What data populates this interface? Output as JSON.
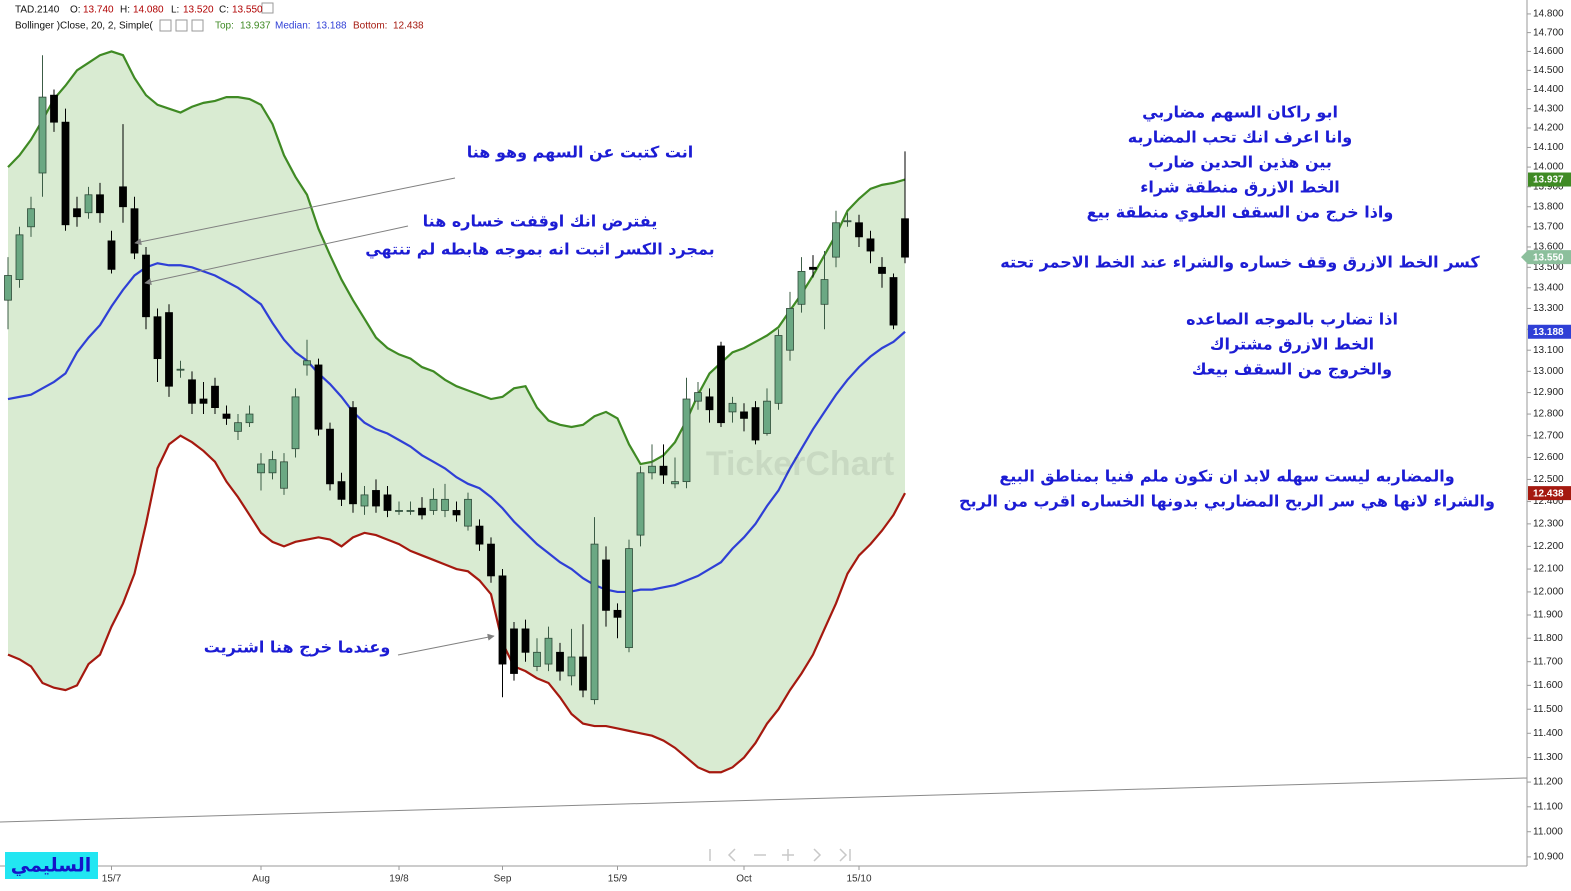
{
  "chart_data": {
    "type": "candlestick",
    "symbol": "TAD.2140",
    "ohlc_header": [
      {
        "name": "O:",
        "value": 13.74,
        "label": "13.740"
      },
      {
        "name": "H:",
        "value": 14.08,
        "label": "14.080"
      },
      {
        "name": "L:",
        "value": 13.52,
        "label": "13.520"
      },
      {
        "name": "C:",
        "value": 13.55,
        "label": "13.550"
      }
    ],
    "indicator": "Bollinger )Close, 20, 2, Simple(",
    "categories": [
      null,
      null,
      null,
      null,
      null,
      null,
      null,
      null,
      null,
      "15/7",
      null,
      null,
      null,
      null,
      null,
      null,
      null,
      null,
      null,
      null,
      null,
      null,
      "Aug",
      null,
      null,
      null,
      null,
      null,
      null,
      null,
      null,
      null,
      null,
      null,
      "19/8",
      null,
      null,
      null,
      null,
      null,
      null,
      null,
      null,
      "Sep",
      null,
      null,
      null,
      null,
      null,
      null,
      null,
      null,
      null,
      "15/9",
      null,
      null,
      null,
      null,
      null,
      null,
      null,
      null,
      null,
      null,
      "Oct",
      null,
      null,
      null,
      null,
      null,
      null,
      null,
      null,
      null,
      "15/10",
      null,
      null,
      null,
      null
    ],
    "open": [
      13.34,
      13.44,
      13.7,
      13.97,
      14.37,
      14.23,
      13.79,
      13.77,
      13.86,
      13.63,
      13.9,
      13.79,
      13.56,
      13.26,
      13.28,
      13.01,
      12.96,
      12.87,
      12.93,
      12.8,
      12.72,
      12.76,
      12.53,
      12.53,
      12.46,
      12.64,
      13.03,
      13.03,
      12.73,
      12.49,
      12.83,
      12.38,
      12.45,
      12.43,
      12.36,
      12.36,
      12.37,
      12.36,
      12.36,
      12.36,
      12.29,
      12.29,
      12.21,
      12.07,
      11.84,
      11.84,
      11.68,
      11.69,
      11.74,
      11.64,
      11.72,
      11.54,
      12.14,
      11.92,
      11.76,
      12.25,
      12.53,
      12.56,
      12.48,
      12.49,
      12.86,
      12.88,
      13.12,
      12.81,
      12.81,
      12.83,
      12.71,
      12.85,
      13.1,
      13.32,
      13.5,
      13.32,
      13.55,
      13.73,
      13.72,
      13.64,
      13.5,
      13.45,
      13.74
    ],
    "high": [
      13.55,
      13.7,
      13.85,
      14.58,
      14.4,
      14.3,
      13.85,
      13.9,
      13.92,
      13.68,
      14.22,
      13.85,
      13.6,
      13.3,
      13.32,
      13.05,
      13.0,
      12.95,
      12.97,
      12.84,
      12.8,
      12.84,
      12.62,
      12.63,
      12.62,
      12.92,
      13.15,
      13.06,
      12.76,
      12.53,
      12.86,
      12.47,
      12.5,
      12.47,
      12.4,
      12.4,
      12.42,
      12.46,
      12.48,
      12.4,
      12.44,
      12.32,
      12.24,
      12.1,
      11.87,
      11.88,
      11.8,
      11.85,
      11.78,
      11.84,
      11.86,
      12.33,
      12.2,
      11.95,
      12.23,
      12.56,
      12.66,
      12.66,
      12.6,
      12.97,
      12.95,
      12.92,
      13.14,
      12.88,
      12.85,
      12.86,
      12.92,
      13.2,
      13.38,
      13.55,
      13.56,
      13.58,
      13.78,
      13.77,
      13.76,
      13.68,
      13.55,
      13.47,
      14.08
    ],
    "low": [
      13.2,
      13.4,
      13.65,
      13.85,
      14.18,
      13.68,
      13.7,
      13.74,
      13.72,
      13.47,
      13.72,
      13.54,
      13.2,
      12.95,
      12.88,
      12.97,
      12.8,
      12.8,
      12.8,
      12.75,
      12.68,
      12.74,
      12.45,
      12.5,
      12.43,
      12.6,
      12.98,
      12.7,
      12.45,
      12.38,
      12.35,
      12.34,
      12.35,
      12.33,
      12.34,
      12.34,
      12.32,
      12.34,
      12.33,
      12.31,
      12.27,
      12.18,
      12.04,
      11.55,
      11.62,
      11.7,
      11.66,
      11.66,
      11.62,
      11.6,
      11.55,
      11.52,
      11.85,
      11.8,
      11.74,
      12.2,
      12.5,
      12.48,
      12.46,
      12.46,
      12.82,
      12.76,
      12.74,
      12.76,
      12.72,
      12.66,
      12.7,
      12.82,
      13.05,
      13.28,
      13.45,
      13.2,
      13.5,
      13.7,
      13.6,
      13.52,
      13.4,
      13.2,
      13.52
    ],
    "close": [
      13.46,
      13.66,
      13.79,
      14.36,
      14.23,
      13.71,
      13.75,
      13.86,
      13.77,
      13.49,
      13.8,
      13.57,
      13.26,
      13.06,
      12.93,
      13.01,
      12.85,
      12.85,
      12.83,
      12.78,
      12.76,
      12.8,
      12.57,
      12.59,
      12.58,
      12.88,
      13.05,
      12.73,
      12.48,
      12.41,
      12.39,
      12.43,
      12.38,
      12.36,
      12.36,
      12.36,
      12.34,
      12.41,
      12.41,
      12.34,
      12.41,
      12.21,
      12.07,
      11.69,
      11.65,
      11.74,
      11.74,
      11.8,
      11.66,
      11.72,
      11.58,
      12.21,
      11.92,
      11.89,
      12.19,
      12.53,
      12.56,
      12.52,
      12.49,
      12.87,
      12.9,
      12.82,
      12.76,
      12.85,
      12.78,
      12.68,
      12.86,
      13.17,
      13.3,
      13.48,
      13.49,
      13.44,
      13.72,
      13.73,
      13.65,
      13.58,
      13.47,
      13.22,
      13.55
    ],
    "up_color": "#6ba883",
    "down_color": "#000000",
    "series": [
      {
        "name": "Top:",
        "color": "#3f8a24",
        "values": [
          14.0,
          14.06,
          14.14,
          14.24,
          14.35,
          14.42,
          14.5,
          14.54,
          14.58,
          14.6,
          14.58,
          14.46,
          14.37,
          14.32,
          14.3,
          14.28,
          14.31,
          14.33,
          14.34,
          14.36,
          14.36,
          14.35,
          14.32,
          14.22,
          14.06,
          13.95,
          13.86,
          13.69,
          13.56,
          13.44,
          13.34,
          13.25,
          13.16,
          13.11,
          13.08,
          13.06,
          13.02,
          13.0,
          12.96,
          12.93,
          12.91,
          12.89,
          12.87,
          12.88,
          12.92,
          12.93,
          12.83,
          12.77,
          12.75,
          12.74,
          12.75,
          12.79,
          12.81,
          12.78,
          12.66,
          12.57,
          12.58,
          12.61,
          12.67,
          12.77,
          12.89,
          12.99,
          13.04,
          13.09,
          13.11,
          13.14,
          13.17,
          13.21,
          13.29,
          13.37,
          13.46,
          13.56,
          13.66,
          13.78,
          13.84,
          13.89,
          13.91,
          13.92,
          13.937
        ]
      },
      {
        "name": "Median:",
        "color": "#2f3fd6",
        "values": [
          12.87,
          12.88,
          12.89,
          12.92,
          12.95,
          12.99,
          13.09,
          13.16,
          13.22,
          13.31,
          13.39,
          13.46,
          13.5,
          13.52,
          13.51,
          13.51,
          13.5,
          13.48,
          13.46,
          13.43,
          13.4,
          13.36,
          13.32,
          13.23,
          13.15,
          13.09,
          13.05,
          12.99,
          12.94,
          12.88,
          12.81,
          12.76,
          12.73,
          12.71,
          12.68,
          12.65,
          12.61,
          12.58,
          12.55,
          12.51,
          12.48,
          12.46,
          12.42,
          12.37,
          12.31,
          12.26,
          12.21,
          12.17,
          12.13,
          12.1,
          12.06,
          12.03,
          12.01,
          12.0,
          12.0,
          12.01,
          12.01,
          12.02,
          12.03,
          12.05,
          12.07,
          12.1,
          12.13,
          12.19,
          12.24,
          12.3,
          12.38,
          12.45,
          12.55,
          12.64,
          12.73,
          12.81,
          12.89,
          12.96,
          13.02,
          13.07,
          13.11,
          13.14,
          13.188
        ]
      },
      {
        "name": "Bottom:",
        "color": "#a5190f",
        "values": [
          11.73,
          11.71,
          11.68,
          11.61,
          11.59,
          11.58,
          11.6,
          11.69,
          11.73,
          11.85,
          11.95,
          12.08,
          12.3,
          12.55,
          12.66,
          12.7,
          12.67,
          12.63,
          12.58,
          12.49,
          12.42,
          12.34,
          12.26,
          12.22,
          12.2,
          12.22,
          12.23,
          12.24,
          12.23,
          12.2,
          12.24,
          12.26,
          12.25,
          12.23,
          12.21,
          12.18,
          12.16,
          12.14,
          12.12,
          12.1,
          12.09,
          12.05,
          11.99,
          11.78,
          11.68,
          11.66,
          11.63,
          11.61,
          11.55,
          11.48,
          11.44,
          11.43,
          11.43,
          11.42,
          11.41,
          11.4,
          11.39,
          11.37,
          11.34,
          11.3,
          11.26,
          11.24,
          11.24,
          11.26,
          11.3,
          11.36,
          11.44,
          11.5,
          11.58,
          11.65,
          11.73,
          11.84,
          11.95,
          12.08,
          12.16,
          12.21,
          12.27,
          12.34,
          12.438
        ]
      }
    ],
    "band_fill": "#d9ebd2",
    "log_scale": true,
    "grid": false,
    "ylim": [
      10.868,
      14.875
    ],
    "yticks": [
      {
        "value": 10.9,
        "label": "10.900"
      },
      {
        "value": 11.0,
        "label": "11.000"
      },
      {
        "value": 11.1,
        "label": "11.100"
      },
      {
        "value": 11.2,
        "label": "11.200"
      },
      {
        "value": 11.3,
        "label": "11.300"
      },
      {
        "value": 11.4,
        "label": "11.400"
      },
      {
        "value": 11.5,
        "label": "11.500"
      },
      {
        "value": 11.6,
        "label": "11.600"
      },
      {
        "value": 11.7,
        "label": "11.700"
      },
      {
        "value": 11.8,
        "label": "11.800"
      },
      {
        "value": 11.9,
        "label": "11.900"
      },
      {
        "value": 12.0,
        "label": "12.000"
      },
      {
        "value": 12.1,
        "label": "12.100"
      },
      {
        "value": 12.2,
        "label": "12.200"
      },
      {
        "value": 12.3,
        "label": "12.300"
      },
      {
        "value": 12.4,
        "label": "12.400"
      },
      {
        "value": 12.5,
        "label": "12.500"
      },
      {
        "value": 12.6,
        "label": "12.600"
      },
      {
        "value": 12.7,
        "label": "12.700"
      },
      {
        "value": 12.8,
        "label": "12.800"
      },
      {
        "value": 12.9,
        "label": "12.900"
      },
      {
        "value": 13.0,
        "label": "13.000"
      },
      {
        "value": 13.1,
        "label": "13.100"
      },
      {
        "value": 13.2,
        "label": "13.200"
      },
      {
        "value": 13.3,
        "label": "13.300"
      },
      {
        "value": 13.4,
        "label": "13.400"
      },
      {
        "value": 13.5,
        "label": "13.500"
      },
      {
        "value": 13.6,
        "label": "13.600"
      },
      {
        "value": 13.7,
        "label": "13.700"
      },
      {
        "value": 13.8,
        "label": "13.800"
      },
      {
        "value": 13.9,
        "label": "13.900"
      },
      {
        "value": 14.0,
        "label": "14.000"
      },
      {
        "value": 14.1,
        "label": "14.100"
      },
      {
        "value": 14.2,
        "label": "14.200"
      },
      {
        "value": 14.3,
        "label": "14.300"
      },
      {
        "value": 14.4,
        "label": "14.400"
      },
      {
        "value": 14.5,
        "label": "14.500"
      },
      {
        "value": 14.6,
        "label": "14.600"
      },
      {
        "value": 14.7,
        "label": "14.700"
      },
      {
        "value": 14.8,
        "label": "14.800"
      }
    ],
    "last_price": {
      "value": 13.55,
      "label": "13.550"
    },
    "last_price_color": "#8cbf9c",
    "annotation_color": "#1c1cd4",
    "annotations": [
      {
        "lines": [
          "انت كتبت عن السهم وهو هنا"
        ]
      },
      {
        "lines": [
          "يفترض انك اوقفت خساره هنا",
          "بمجرد الكسر اثبت انه بموجه هابطه لم تنتهي"
        ]
      },
      {
        "lines": [
          "وعندما خرج هنا اشتريت"
        ]
      },
      {
        "lines": [
          "ابو راكان السهم مضاربي",
          "وانا اعرف انك تحب المضاربه",
          "بين هذين الحدين ضارب",
          "الخط الازرق منطقة شراء",
          "واذا خرج  من السقف العلوي منطقة بيع"
        ]
      },
      {
        "lines": [
          "كسر الخط الازرق وقف خساره  والشراء عند الخط الاحمر تحته"
        ]
      },
      {
        "lines": [
          "اذا تضارب بالموجه الصاعده",
          "الخط الازرق مشتراك",
          "والخروج من السقف بيعك"
        ]
      },
      {
        "lines": [
          "والمضاربه ليست سهله لابد ان تكون ملم فنيا بمناطق البيع",
          "والشراء لانها هي سر الربح المضاربي بدونها الخساره اقرب من الربح"
        ]
      }
    ],
    "watermark": "TickerChart",
    "author": "السليمي"
  }
}
